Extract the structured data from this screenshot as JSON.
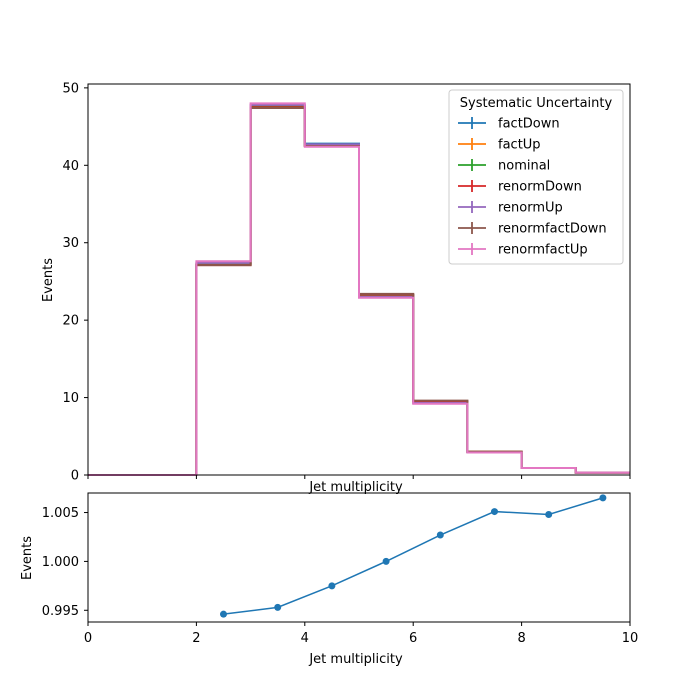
{
  "chart_data": [
    {
      "type": "step",
      "xlabel": "Jet multiplicity",
      "ylabel": "Events",
      "xlim": [
        0,
        10
      ],
      "ylim": [
        0,
        50.5
      ],
      "yticks": [
        0,
        10,
        20,
        30,
        40,
        50
      ],
      "ytick_labels": [
        "0",
        "10",
        "20",
        "30",
        "40",
        "50"
      ],
      "bin_edges": [
        0,
        1,
        2,
        3,
        4,
        5,
        6,
        7,
        8,
        9,
        10
      ],
      "legend": {
        "title": "Systematic Uncertainty",
        "placement": "upper-right"
      },
      "series": [
        {
          "name": "factDown",
          "color": "#1f77b4",
          "values": [
            0,
            0,
            27.3,
            47.7,
            42.8,
            23.3,
            9.5,
            3.0,
            0.9,
            0.3
          ]
        },
        {
          "name": "factUp",
          "color": "#ff7f0e",
          "values": [
            0,
            0,
            27.2,
            47.6,
            42.6,
            23.3,
            9.5,
            3.0,
            0.9,
            0.3
          ]
        },
        {
          "name": "nominal",
          "color": "#2ca02c",
          "values": [
            0,
            0,
            27.2,
            47.7,
            42.6,
            23.2,
            9.5,
            3.0,
            0.9,
            0.3
          ]
        },
        {
          "name": "renormDown",
          "color": "#d62728",
          "values": [
            0,
            0,
            27.1,
            47.5,
            42.5,
            23.3,
            9.5,
            3.0,
            0.9,
            0.3
          ]
        },
        {
          "name": "renormUp",
          "color": "#9467bd",
          "values": [
            0,
            0,
            27.4,
            47.8,
            42.7,
            23.0,
            9.3,
            2.9,
            0.9,
            0.3
          ]
        },
        {
          "name": "renormfactDown",
          "color": "#8c564b",
          "values": [
            0,
            0,
            27.1,
            47.4,
            42.5,
            23.4,
            9.6,
            3.0,
            0.9,
            0.3
          ]
        },
        {
          "name": "renormfactUp",
          "color": "#e377c2",
          "values": [
            0,
            0,
            27.6,
            48.0,
            42.4,
            22.9,
            9.2,
            2.9,
            0.9,
            0.3
          ]
        }
      ]
    },
    {
      "type": "line",
      "xlabel": "Jet multiplicity",
      "ylabel": "Events",
      "xlim": [
        0,
        10
      ],
      "ylim": [
        0.9938,
        1.007
      ],
      "xticks": [
        0,
        2,
        4,
        6,
        8,
        10
      ],
      "xtick_labels": [
        "0",
        "2",
        "4",
        "6",
        "8",
        "10"
      ],
      "yticks": [
        0.995,
        1.0,
        1.005
      ],
      "ytick_labels": [
        "0.995",
        "1.000",
        "1.005"
      ],
      "color": "#1f77b4",
      "x": [
        2.5,
        3.5,
        4.5,
        5.5,
        6.5,
        7.5,
        8.5,
        9.5
      ],
      "y": [
        0.9946,
        0.9953,
        0.9975,
        1.0,
        1.0027,
        1.0051,
        1.0048,
        1.0065
      ]
    }
  ]
}
